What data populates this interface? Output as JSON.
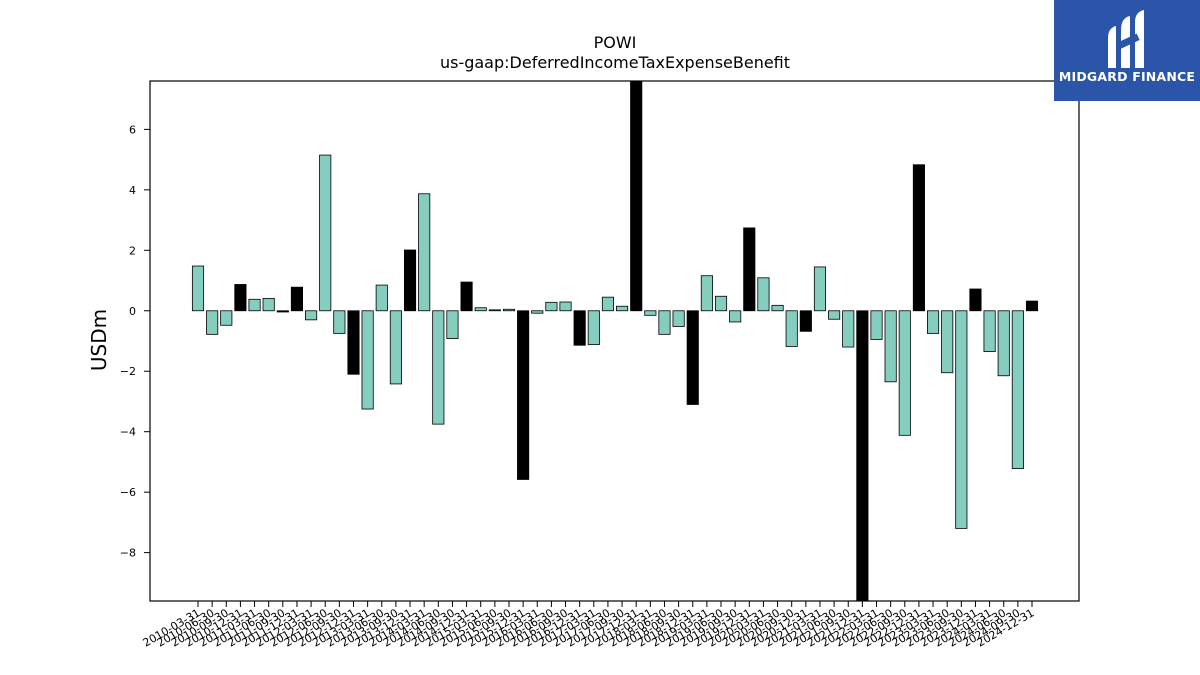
{
  "logo": {
    "text": "MIDGARD FINANCE"
  },
  "colors": {
    "positive": "#84cdbf",
    "negative": "#84cdbf",
    "highlight": "#000000",
    "edge": "#000000",
    "brand": "#2a55a8"
  },
  "chart_data": {
    "type": "bar",
    "title": "POWI",
    "subtitle": "us-gaap:DeferredIncomeTaxExpenseBenefit",
    "ylabel": "USDm",
    "xlabel": "",
    "ylim": [
      -9.6,
      7.6
    ],
    "yticks": [
      -8,
      -6,
      -4,
      -2,
      0,
      2,
      4,
      6
    ],
    "grid": false,
    "categories": [
      "2010-03-31",
      "2010-06-30",
      "2010-09-30",
      "2010-12-31",
      "2011-03-31",
      "2011-06-30",
      "2011-09-30",
      "2011-12-31",
      "2012-03-31",
      "2012-06-30",
      "2012-09-30",
      "2012-12-31",
      "2013-03-31",
      "2013-06-30",
      "2013-09-30",
      "2013-12-31",
      "2014-03-31",
      "2014-06-30",
      "2014-09-30",
      "2014-12-31",
      "2015-03-31",
      "2015-06-30",
      "2015-09-30",
      "2015-12-31",
      "2016-03-31",
      "2016-06-30",
      "2016-09-30",
      "2016-12-31",
      "2017-03-31",
      "2017-06-30",
      "2017-09-30",
      "2017-12-31",
      "2018-03-31",
      "2018-06-30",
      "2018-09-30",
      "2018-12-31",
      "2019-03-31",
      "2019-06-30",
      "2019-09-30",
      "2019-12-31",
      "2020-03-31",
      "2020-06-30",
      "2020-09-30",
      "2020-12-31",
      "2021-03-31",
      "2021-06-30",
      "2021-09-30",
      "2021-12-31",
      "2022-03-31",
      "2022-06-30",
      "2022-09-30",
      "2022-12-31",
      "2023-03-31",
      "2023-06-30",
      "2023-09-30",
      "2023-12-31",
      "2024-03-31",
      "2024-06-30",
      "2024-09-30",
      "2024-12-31"
    ],
    "values": [
      1.48,
      -0.78,
      -0.48,
      0.87,
      0.38,
      0.41,
      -0.04,
      0.78,
      -0.3,
      5.15,
      -0.75,
      -2.1,
      -3.25,
      0.85,
      -2.42,
      2.01,
      3.87,
      -3.75,
      -0.92,
      0.95,
      0.1,
      0.03,
      0.05,
      -5.58,
      -0.08,
      0.28,
      0.29,
      -1.14,
      -1.12,
      0.45,
      0.15,
      7.6,
      -0.15,
      -0.78,
      -0.52,
      -3.1,
      1.16,
      0.48,
      -0.37,
      2.74,
      1.09,
      0.18,
      -1.18,
      -0.68,
      1.45,
      -0.28,
      -1.2,
      -9.6,
      -0.95,
      -2.35,
      -4.12,
      4.83,
      -0.75,
      -2.05,
      -7.2,
      0.72,
      -1.35,
      -2.15,
      -5.22,
      0.32
    ],
    "highlight": [
      false,
      false,
      false,
      true,
      false,
      false,
      true,
      true,
      false,
      false,
      false,
      true,
      false,
      false,
      false,
      true,
      false,
      false,
      false,
      true,
      false,
      false,
      false,
      true,
      false,
      false,
      false,
      true,
      false,
      false,
      false,
      true,
      false,
      false,
      false,
      true,
      false,
      false,
      false,
      true,
      false,
      false,
      false,
      true,
      false,
      false,
      false,
      true,
      false,
      false,
      false,
      true,
      false,
      false,
      false,
      true,
      false,
      false,
      false,
      true
    ]
  }
}
